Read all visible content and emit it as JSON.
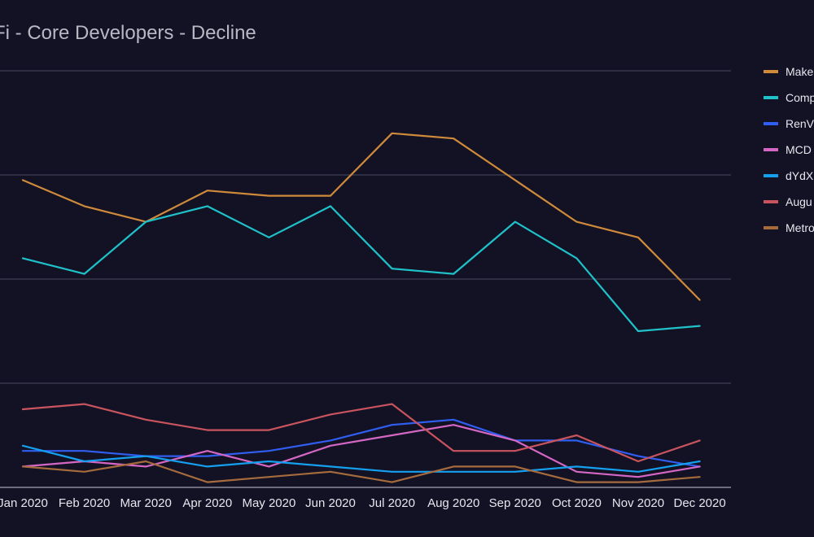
{
  "chart_data": {
    "type": "line",
    "title": "Fi - Core Developers - Decline",
    "xlabel": "",
    "ylabel": "",
    "ylim": [
      0,
      40
    ],
    "grid": true,
    "legend_position": "right",
    "categories": [
      "Jan 2020",
      "Feb 2020",
      "Mar 2020",
      "Apr 2020",
      "May 2020",
      "Jun 2020",
      "Jul 2020",
      "Aug 2020",
      "Sep 2020",
      "Oct 2020",
      "Nov 2020",
      "Dec 2020"
    ],
    "series": [
      {
        "name": "Make",
        "color": "#cf8a3a",
        "values": [
          29.5,
          27,
          25.5,
          28.5,
          28,
          28,
          34,
          33.5,
          29.5,
          25.5,
          24,
          18
        ]
      },
      {
        "name": "Comp",
        "color": "#1fc2c9",
        "values": [
          22,
          20.5,
          25.5,
          27,
          24,
          27,
          21,
          20.5,
          25.5,
          22,
          15,
          15.5
        ]
      },
      {
        "name": "RenV",
        "color": "#2f5ef0",
        "values": [
          3.5,
          3.5,
          3,
          3,
          3.5,
          4.5,
          6,
          6.5,
          4.5,
          4.5,
          3,
          2
        ]
      },
      {
        "name": "MCD",
        "color": "#d567c4",
        "values": [
          2,
          2.5,
          2,
          3.5,
          2,
          4,
          5,
          6,
          4.5,
          1.5,
          1,
          2
        ]
      },
      {
        "name": "dYdX",
        "color": "#14a0ef",
        "values": [
          4,
          2.5,
          3,
          2,
          2.5,
          2,
          1.5,
          1.5,
          1.5,
          2,
          1.5,
          2.5
        ]
      },
      {
        "name": "Augu",
        "color": "#c9545e",
        "values": [
          7.5,
          8,
          6.5,
          5.5,
          5.5,
          7,
          8,
          3.5,
          3.5,
          5,
          2.5,
          4.5
        ]
      },
      {
        "name": "Metro",
        "color": "#a56b3c",
        "values": [
          2,
          1.5,
          2.5,
          0.5,
          1,
          1.5,
          0.5,
          2,
          2,
          0.5,
          0.5,
          1
        ]
      }
    ]
  }
}
